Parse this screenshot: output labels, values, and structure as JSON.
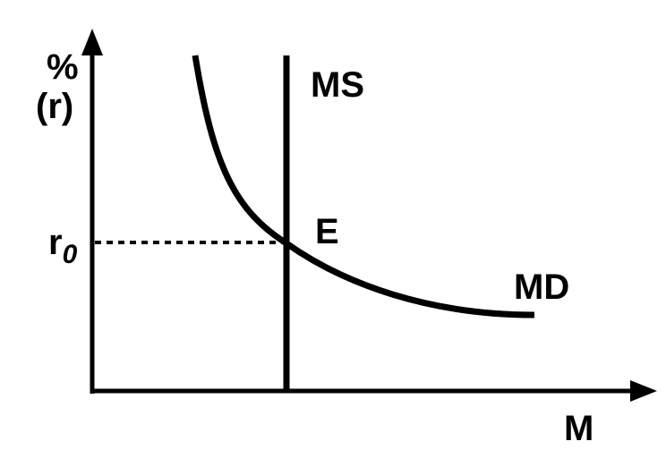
{
  "axes": {
    "y_label_top": "%",
    "y_label_bottom": "(r)",
    "x_label": "M"
  },
  "equilibrium": {
    "rate": {
      "base": "r",
      "subscript": "0"
    },
    "point": "E"
  },
  "curves": {
    "supply": "MS",
    "demand": "MD"
  }
}
